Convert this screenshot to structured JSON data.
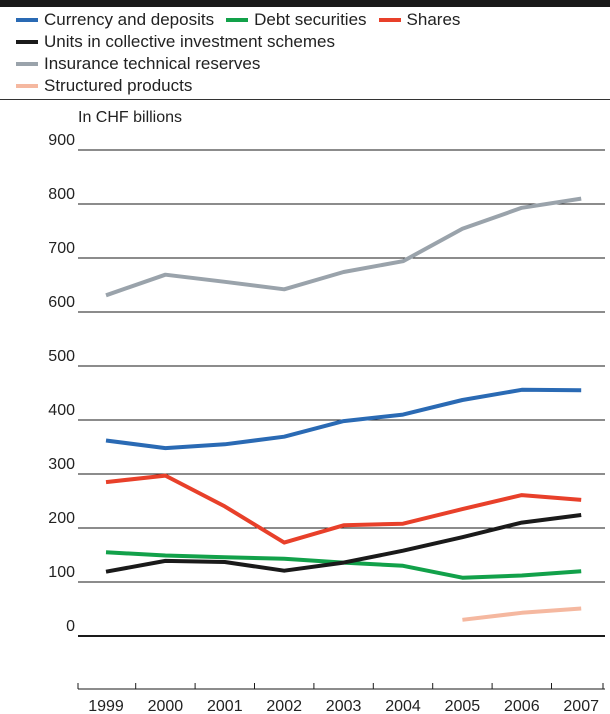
{
  "chart_data": {
    "type": "line",
    "ylabel": "In CHF billions",
    "ylim": [
      -100,
      900
    ],
    "y_ticks": [
      0,
      100,
      200,
      300,
      400,
      500,
      600,
      700,
      800,
      900
    ],
    "categories": [
      "1999",
      "2000",
      "2001",
      "2002",
      "2003",
      "2004",
      "2005",
      "2006",
      "2007"
    ],
    "grid": "horizontal",
    "legend_position": "top",
    "series": [
      {
        "name": "Currency and deposits",
        "color": "#2a6ab4",
        "values": [
          362,
          348,
          355,
          369,
          398,
          410,
          437,
          456,
          455
        ]
      },
      {
        "name": "Debt securities",
        "color": "#12a14a",
        "values": [
          155,
          149,
          146,
          143,
          136,
          130,
          108,
          112,
          120
        ]
      },
      {
        "name": "Shares",
        "color": "#e8402a",
        "values": [
          285,
          297,
          240,
          173,
          205,
          208,
          235,
          261,
          252
        ]
      },
      {
        "name": "Units in collective investment schemes",
        "color": "#1a1a1a",
        "values": [
          119,
          139,
          137,
          121,
          136,
          158,
          183,
          210,
          224
        ]
      },
      {
        "name": "Insurance technical reserves",
        "color": "#9aa3ab",
        "values": [
          631,
          669,
          656,
          642,
          674,
          694,
          754,
          793,
          810
        ]
      },
      {
        "name": "Structured products",
        "color": "#f5b8a0",
        "values": [
          null,
          null,
          null,
          null,
          null,
          null,
          30,
          43,
          51
        ]
      }
    ]
  }
}
